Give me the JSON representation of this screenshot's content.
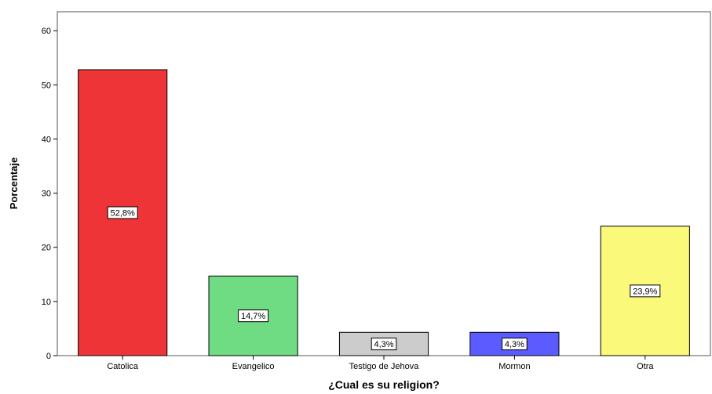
{
  "chart_data": {
    "type": "bar",
    "title": "",
    "xlabel": "¿Cual es su religion?",
    "ylabel": "Porcentaje",
    "categories": [
      "Catolica",
      "Evangelico",
      "Testigo de Jehova",
      "Mormon",
      "Otra"
    ],
    "values": [
      52.8,
      14.7,
      4.3,
      4.3,
      23.9
    ],
    "data_labels": [
      "52,8%",
      "14,7%",
      "4,3%",
      "4,3%",
      "23,9%"
    ],
    "colors": [
      "#ee3436",
      "#6fdb83",
      "#cccccc",
      "#5b5bff",
      "#faf97a"
    ],
    "ylim": [
      0,
      63.5
    ],
    "yticks": [
      0,
      10,
      20,
      30,
      40,
      50,
      60
    ],
    "grid": false,
    "legend": "none"
  }
}
